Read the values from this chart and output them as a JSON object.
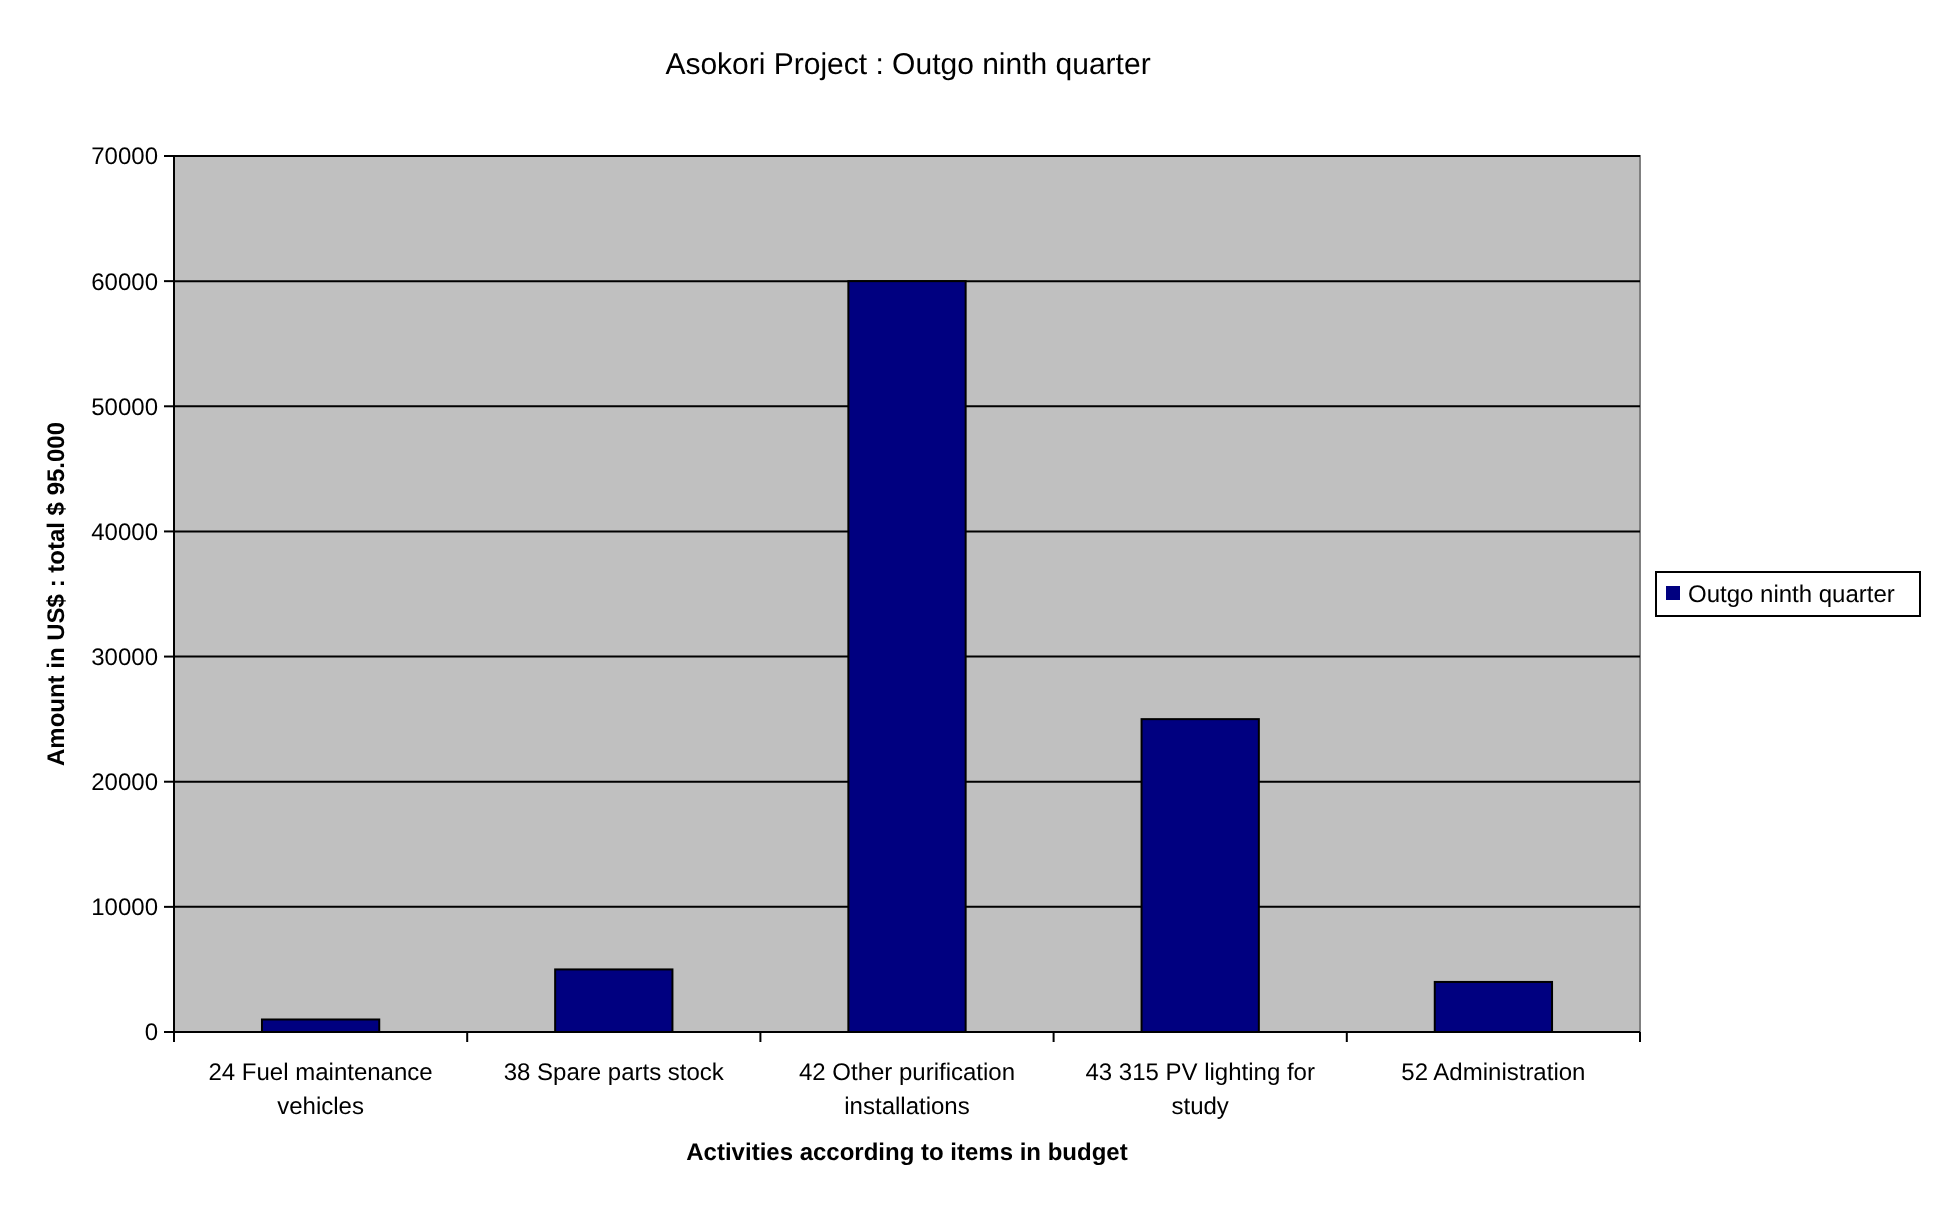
{
  "chart_data": {
    "type": "bar",
    "title": "Asokori Project : Outgo ninth quarter",
    "xlabel": "Activities according to items in budget",
    "ylabel": "Amount in US$ : total $ 95.000",
    "categories": [
      "24 Fuel maintenance vehicles",
      "38 Spare parts stock",
      "42 Other purification installations",
      "43 315 PV lighting for study",
      "52 Administration"
    ],
    "series": [
      {
        "name": "Outgo ninth quarter",
        "color": "#000080",
        "values": [
          1000,
          5000,
          60000,
          25000,
          4000
        ]
      }
    ],
    "ylim": [
      0,
      70000
    ],
    "yticks": [
      0,
      10000,
      20000,
      30000,
      40000,
      50000,
      60000,
      70000
    ],
    "grid": "y",
    "legend": "right"
  }
}
